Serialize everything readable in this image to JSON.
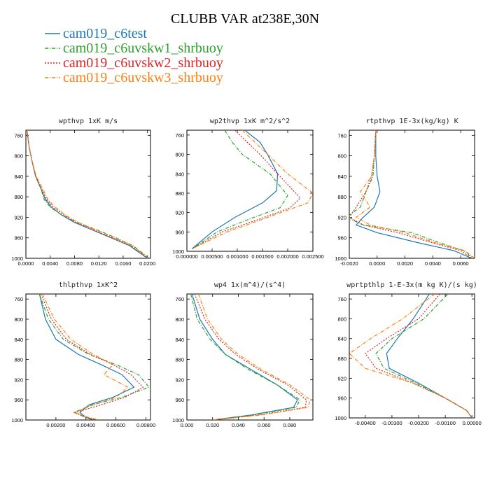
{
  "title": "CLUBB VAR at238E,30N",
  "legend": [
    {
      "name": "cam019_c6test",
      "color": "#1f77b4",
      "dash": ""
    },
    {
      "name": "cam019_c6uvskw1_shrbuoy",
      "color": "#2ca02c",
      "dash": "5,2,1,2"
    },
    {
      "name": "cam019_c6uvskw2_shrbuoy",
      "color": "#d62728",
      "dash": "2,2"
    },
    {
      "name": "cam019_c6uvskw3_shrbuoy",
      "color": "#ff7f0e",
      "dash": "5,2,1,2"
    }
  ],
  "chart_data": [
    {
      "type": "line",
      "title": "wpthvp  1xK m/s",
      "xlim": [
        0,
        0.0205
      ],
      "ylim": [
        1000,
        750
      ],
      "xticks": [
        "0.0000",
        "0.0040",
        "0.0080",
        "0.0120",
        "0.0160",
        "0.0200"
      ],
      "xtick_values": [
        0,
        0.004,
        0.008,
        0.012,
        0.016,
        0.02
      ],
      "yticks": [
        760,
        800,
        840,
        880,
        920,
        960,
        1000
      ],
      "series": [
        {
          "name": "cam019_c6test",
          "x": [
            0.0002,
            0.0005,
            0.001,
            0.0016,
            0.0025,
            0.0032,
            0.0042,
            0.0058,
            0.008,
            0.011,
            0.014,
            0.017,
            0.02
          ],
          "y": [
            750,
            780,
            810,
            840,
            865,
            885,
            900,
            915,
            930,
            945,
            960,
            975,
            1000
          ]
        },
        {
          "name": "cam019_c6uvskw1_shrbuoy",
          "x": [
            0.0002,
            0.0005,
            0.001,
            0.0016,
            0.0025,
            0.003,
            0.004,
            0.0058,
            0.0085,
            0.0118,
            0.0148,
            0.0176,
            0.0203
          ],
          "y": [
            750,
            780,
            810,
            840,
            865,
            885,
            900,
            915,
            930,
            945,
            960,
            975,
            1000
          ]
        },
        {
          "name": "cam019_c6uvskw2_shrbuoy",
          "x": [
            0.0002,
            0.0005,
            0.001,
            0.0016,
            0.0026,
            0.0034,
            0.0045,
            0.0062,
            0.0082,
            0.0112,
            0.0142,
            0.0172,
            0.0202
          ],
          "y": [
            750,
            780,
            810,
            840,
            865,
            885,
            900,
            915,
            930,
            945,
            960,
            975,
            1000
          ]
        },
        {
          "name": "cam019_c6uvskw3_shrbuoy",
          "x": [
            0.0002,
            0.0005,
            0.001,
            0.0017,
            0.0028,
            0.0036,
            0.0048,
            0.0064,
            0.0086,
            0.0116,
            0.0146,
            0.0174,
            0.0202
          ],
          "y": [
            750,
            780,
            810,
            840,
            865,
            885,
            900,
            915,
            930,
            945,
            960,
            975,
            1000
          ]
        }
      ]
    },
    {
      "type": "line",
      "title": "wp2thvp  1xK m^2/s^2",
      "xlim": [
        0,
        0.0025
      ],
      "ylim": [
        1000,
        750
      ],
      "xticks": [
        "0.000000",
        "0.000500",
        "0.001000",
        "0.001500",
        "0.002000",
        "0.002500"
      ],
      "xtick_values": [
        0,
        0.0005,
        0.001,
        0.0015,
        0.002,
        0.0025
      ],
      "yticks": [
        760,
        800,
        840,
        880,
        920,
        960,
        1000
      ],
      "series": [
        {
          "name": "cam019_c6test",
          "x": [
            0.00115,
            0.00145,
            0.0016,
            0.0018,
            0.00178,
            0.0015,
            0.00095,
            0.0005,
            0.0001
          ],
          "y": [
            750,
            775,
            800,
            840,
            875,
            900,
            930,
            960,
            995
          ]
        },
        {
          "name": "cam019_c6uvskw1_shrbuoy",
          "x": [
            0.00075,
            0.0009,
            0.0011,
            0.00165,
            0.002,
            0.00185,
            0.0012,
            0.0006,
            0.0001
          ],
          "y": [
            750,
            775,
            800,
            840,
            885,
            910,
            935,
            960,
            995
          ]
        },
        {
          "name": "cam019_c6uvskw2_shrbuoy",
          "x": [
            0.00095,
            0.0012,
            0.00145,
            0.0018,
            0.00225,
            0.00205,
            0.0014,
            0.0007,
            0.0001
          ],
          "y": [
            750,
            775,
            800,
            840,
            890,
            910,
            935,
            960,
            995
          ]
        },
        {
          "name": "cam019_c6uvskw3_shrbuoy",
          "x": [
            0.0011,
            0.00135,
            0.0016,
            0.002,
            0.0025,
            0.0024,
            0.0016,
            0.0008,
            0.0001
          ],
          "y": [
            750,
            775,
            800,
            840,
            880,
            900,
            930,
            960,
            995
          ]
        }
      ]
    },
    {
      "type": "line",
      "title": "rtpthvp  1E-3x(kg/kg) K",
      "xlim": [
        -0.002,
        0.007
      ],
      "ylim": [
        1000,
        750
      ],
      "xticks": [
        "-0.0020",
        "0.0000",
        "0.0020",
        "0.0040",
        "0.0060"
      ],
      "xtick_values": [
        -0.002,
        0,
        0.002,
        0.004,
        0.006
      ],
      "yticks": [
        760,
        800,
        840,
        880,
        920,
        960,
        1000
      ],
      "series": [
        {
          "name": "cam019_c6test",
          "x": [
            -0.0001,
            -0.0001,
            0.0,
            0.0002,
            -0.0002,
            -0.001,
            -0.0015,
            0.0,
            0.003,
            0.0055,
            0.0068
          ],
          "y": [
            750,
            800,
            840,
            870,
            900,
            920,
            935,
            950,
            970,
            985,
            1000
          ]
        },
        {
          "name": "cam019_c6uvskw1_shrbuoy",
          "x": [
            -0.0001,
            -0.0002,
            -0.0003,
            -0.0008,
            -0.0012,
            -0.0022,
            -0.001,
            0.0025,
            0.0045,
            0.0062,
            0.0069
          ],
          "y": [
            750,
            800,
            840,
            870,
            900,
            920,
            935,
            950,
            970,
            985,
            1000
          ]
        },
        {
          "name": "cam019_c6uvskw2_shrbuoy",
          "x": [
            -0.0001,
            -0.0002,
            -0.0004,
            -0.0008,
            -0.0015,
            -0.002,
            -0.001,
            0.0015,
            0.004,
            0.006,
            0.0068
          ],
          "y": [
            750,
            800,
            840,
            870,
            900,
            920,
            935,
            950,
            970,
            985,
            1000
          ]
        },
        {
          "name": "cam019_c6uvskw3_shrbuoy",
          "x": [
            -0.0001,
            -0.0002,
            -0.0004,
            -0.0012,
            -0.0005,
            -0.0015,
            -0.0005,
            0.002,
            0.0042,
            0.0063,
            0.007
          ],
          "y": [
            750,
            800,
            840,
            870,
            900,
            920,
            935,
            950,
            970,
            985,
            1000
          ]
        }
      ]
    },
    {
      "type": "line",
      "title": "thlpthvp  1xK^2",
      "xlim": [
        0,
        0.0083
      ],
      "ylim": [
        1000,
        750
      ],
      "xticks": [
        "0.00200",
        "0.00400",
        "0.00600",
        "0.00800"
      ],
      "xtick_values": [
        0.002,
        0.004,
        0.006,
        0.008
      ],
      "yticks": [
        760,
        800,
        840,
        880,
        920,
        960,
        1000
      ],
      "series": [
        {
          "name": "cam019_c6test",
          "x": [
            0.0009,
            0.0013,
            0.002,
            0.0035,
            0.005,
            0.0064,
            0.0072,
            0.0058,
            0.0042,
            0.0036,
            0.004,
            0.0045
          ],
          "y": [
            750,
            800,
            840,
            870,
            890,
            910,
            935,
            955,
            970,
            985,
            995,
            1000
          ]
        },
        {
          "name": "cam019_c6uvskw1_shrbuoy",
          "x": [
            0.0009,
            0.0015,
            0.0025,
            0.0042,
            0.006,
            0.0075,
            0.0082,
            0.0064,
            0.0044,
            0.0032,
            0.004,
            0.0048
          ],
          "y": [
            750,
            800,
            840,
            870,
            890,
            910,
            935,
            955,
            970,
            985,
            995,
            1000
          ]
        },
        {
          "name": "cam019_c6uvskw2_shrbuoy",
          "x": [
            0.001,
            0.0017,
            0.0027,
            0.0043,
            0.0058,
            0.007,
            0.0078,
            0.0066,
            0.005,
            0.0033,
            0.004,
            0.0047
          ],
          "y": [
            750,
            800,
            840,
            870,
            890,
            910,
            935,
            955,
            970,
            985,
            995,
            1000
          ]
        },
        {
          "name": "cam019_c6uvskw3_shrbuoy",
          "x": [
            0.0011,
            0.0019,
            0.003,
            0.0045,
            0.0058,
            0.0052,
            0.0068,
            0.006,
            0.0045,
            0.0032,
            0.0042,
            0.0049
          ],
          "y": [
            750,
            800,
            840,
            870,
            890,
            910,
            935,
            955,
            970,
            985,
            995,
            1000
          ]
        }
      ]
    },
    {
      "type": "line",
      "title": "wp4  1x(m^4)/(s^4)",
      "xlim": [
        0,
        0.098
      ],
      "ylim": [
        1000,
        750
      ],
      "xticks": [
        "0.000",
        "0.020",
        "0.040",
        "0.060",
        "0.080"
      ],
      "xtick_values": [
        0,
        0.02,
        0.04,
        0.06,
        0.08
      ],
      "yticks": [
        760,
        800,
        840,
        880,
        920,
        960,
        1000
      ],
      "series": [
        {
          "name": "cam019_c6test",
          "x": [
            0.004,
            0.01,
            0.02,
            0.03,
            0.05,
            0.07,
            0.086,
            0.083,
            0.05,
            0.02
          ],
          "y": [
            750,
            800,
            840,
            870,
            900,
            930,
            960,
            975,
            990,
            1000
          ]
        },
        {
          "name": "cam019_c6uvskw1_shrbuoy",
          "x": [
            0.003,
            0.008,
            0.018,
            0.03,
            0.048,
            0.07,
            0.088,
            0.085,
            0.052,
            0.02
          ],
          "y": [
            750,
            800,
            840,
            870,
            900,
            930,
            960,
            975,
            990,
            1000
          ]
        },
        {
          "name": "cam019_c6uvskw2_shrbuoy",
          "x": [
            0.006,
            0.014,
            0.025,
            0.038,
            0.056,
            0.078,
            0.093,
            0.092,
            0.056,
            0.02
          ],
          "y": [
            750,
            800,
            840,
            870,
            900,
            930,
            960,
            975,
            990,
            1000
          ]
        },
        {
          "name": "cam019_c6uvskw3_shrbuoy",
          "x": [
            0.009,
            0.016,
            0.027,
            0.04,
            0.058,
            0.08,
            0.096,
            0.094,
            0.058,
            0.02
          ],
          "y": [
            750,
            800,
            840,
            870,
            900,
            930,
            960,
            975,
            990,
            1000
          ]
        }
      ]
    },
    {
      "type": "line",
      "title": "wprtpthlp  1-E-3x(m kg K)/(s kg)",
      "xlim": [
        -0.0046,
        0.0001
      ],
      "ylim": [
        1000,
        750
      ],
      "xticks": [
        "-0.00400",
        "-0.00300",
        "-0.00200",
        "-0.00100",
        "0.00000"
      ],
      "xtick_values": [
        -0.004,
        -0.003,
        -0.002,
        -0.001,
        0
      ],
      "yticks": [
        760,
        800,
        840,
        880,
        920,
        960,
        1000
      ],
      "series": [
        {
          "name": "cam019_c6test",
          "x": [
            -0.0016,
            -0.0022,
            -0.0028,
            -0.0032,
            -0.0031,
            -0.002,
            -0.001,
            -0.0002,
            0.0
          ],
          "y": [
            750,
            800,
            840,
            870,
            900,
            930,
            960,
            985,
            1000
          ]
        },
        {
          "name": "cam019_c6uvskw1_shrbuoy",
          "x": [
            -0.0009,
            -0.0018,
            -0.003,
            -0.0036,
            -0.0033,
            -0.0021,
            -0.001,
            -0.0002,
            0.0
          ],
          "y": [
            750,
            800,
            840,
            870,
            900,
            930,
            960,
            985,
            1000
          ]
        },
        {
          "name": "cam019_c6uvskw2_shrbuoy",
          "x": [
            -0.0012,
            -0.002,
            -0.0032,
            -0.004,
            -0.0036,
            -0.0022,
            -0.001,
            -0.0002,
            0.0
          ],
          "y": [
            750,
            800,
            840,
            870,
            900,
            930,
            960,
            985,
            1000
          ]
        },
        {
          "name": "cam019_c6uvskw3_shrbuoy",
          "x": [
            -0.0014,
            -0.0026,
            -0.0038,
            -0.0046,
            -0.004,
            -0.0022,
            -0.001,
            -0.0002,
            0.0
          ],
          "y": [
            750,
            800,
            840,
            870,
            900,
            930,
            960,
            985,
            1000
          ]
        }
      ]
    }
  ]
}
